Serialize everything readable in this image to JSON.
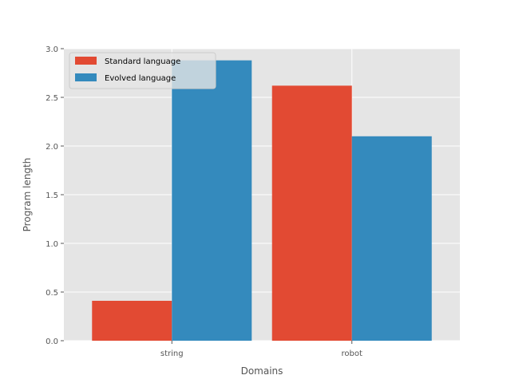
{
  "chart_data": {
    "type": "bar",
    "title": "",
    "xlabel": "Domains",
    "ylabel": "Program length",
    "categories": [
      "string",
      "robot"
    ],
    "series": [
      {
        "name": "Standard language",
        "color": "#E24A33",
        "values": [
          0.41,
          2.62
        ]
      },
      {
        "name": "Evolved language",
        "color": "#348ABD",
        "values": [
          2.88,
          2.1
        ]
      }
    ],
    "ylim": [
      0,
      3.0
    ],
    "yticks": [
      {
        "value": 0.0,
        "label": "0.0"
      },
      {
        "value": 0.5,
        "label": "0.5"
      },
      {
        "value": 1.0,
        "label": "1.0"
      },
      {
        "value": 1.5,
        "label": "1.5"
      },
      {
        "value": 2.0,
        "label": "2.0"
      },
      {
        "value": 2.5,
        "label": "2.5"
      },
      {
        "value": 3.0,
        "label": "3.0"
      }
    ],
    "grid": true,
    "legend_position": "top-left",
    "background_color": "#E5E5E5",
    "grid_color": "#FFFFFF"
  }
}
